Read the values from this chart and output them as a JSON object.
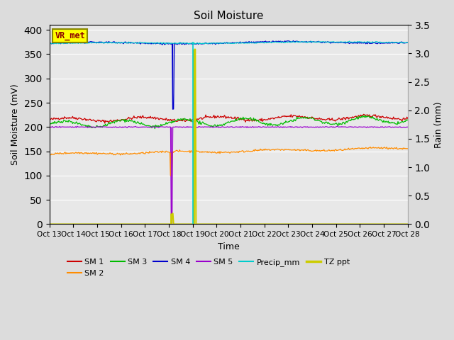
{
  "title": "Soil Moisture",
  "xlabel": "Time",
  "ylabel_left": "Soil Moisture (mV)",
  "ylabel_right": "Rain (mm)",
  "ylim_left": [
    0,
    410
  ],
  "ylim_right": [
    0,
    3.5
  ],
  "x_ticks_labels": [
    "Oct 13",
    "Oct 14",
    "Oct 15",
    "Oct 16",
    "Oct 17",
    "Oct 18",
    "Oct 19",
    "Oct 20",
    "Oct 21",
    "Oct 22",
    "Oct 23",
    "Oct 24",
    "Oct 25",
    "Oct 26",
    "Oct 27",
    "Oct 28"
  ],
  "bg_color": "#dcdcdc",
  "plot_bg_color": "#e8e8e8",
  "vr_met_box_color": "#ffff00",
  "vr_met_text_color": "#8b0000",
  "sm1_color": "#cc0000",
  "sm2_color": "#ff8c00",
  "sm3_color": "#00bb00",
  "sm4_color": "#0000cc",
  "sm5_color": "#9900cc",
  "precip_color": "#00cccc",
  "tz_color": "#cccc00",
  "legend_fontsize": 8,
  "title_fontsize": 11,
  "label_fontsize": 9,
  "tick_fontsize": 7.5
}
